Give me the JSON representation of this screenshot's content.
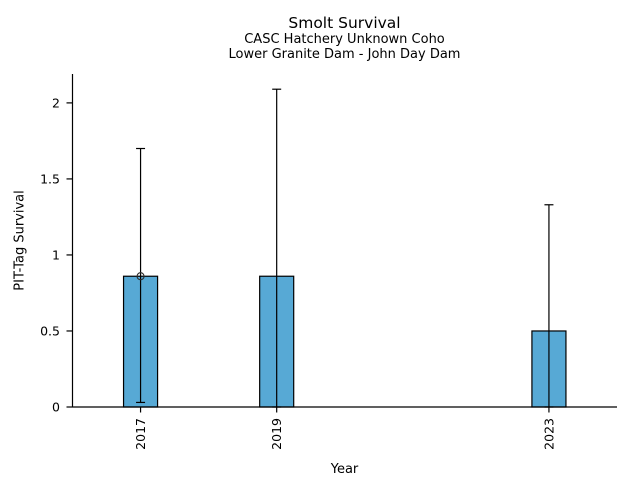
{
  "chart_data": {
    "type": "bar",
    "title": "Smolt Survival",
    "subtitle1": "CASC Hatchery Unknown Coho",
    "subtitle2": "Lower Granite Dam - John Day Dam",
    "xlabel": "Year",
    "ylabel": "PIT-Tag Survival",
    "categories": [
      2017,
      2019,
      2023
    ],
    "values": [
      0.86,
      0.86,
      0.5
    ],
    "error_low": [
      0.03,
      0.0,
      0.0
    ],
    "error_high": [
      1.7,
      2.09,
      1.33
    ],
    "marker_points": [
      {
        "x": 2017,
        "y": 0.86
      }
    ],
    "marker": "open-circle",
    "xlim": [
      2016,
      2024
    ],
    "ylim": [
      0,
      2.19
    ],
    "yticks": [
      0,
      0.5,
      1,
      1.5,
      2
    ],
    "ytick_labels": [
      "0",
      "0.5",
      "1",
      "1.5",
      "2"
    ],
    "xtick_labels": [
      "2017",
      "2019",
      "2023"
    ],
    "grid": false,
    "legend": "none",
    "bar_width_years": 0.5,
    "bar_color": "#57a9d5",
    "bar_edge_color": "#000000",
    "error_color": "#000000",
    "axis_color": "#000000",
    "background_color": "#ffffff"
  }
}
